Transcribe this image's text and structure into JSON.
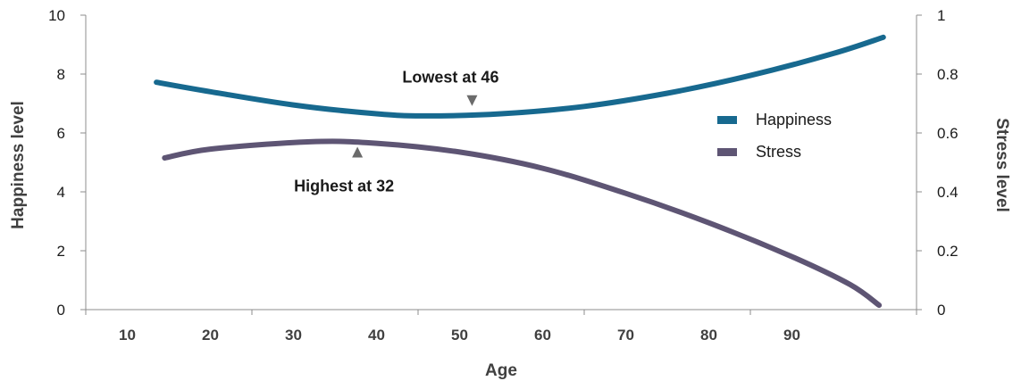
{
  "chart_data": {
    "type": "line",
    "xlabel": "Age",
    "ylabel_left": "Happiness level",
    "ylabel_right": "Stress level",
    "x_ticks": [
      "10",
      "20",
      "30",
      "40",
      "50",
      "60",
      "70",
      "80",
      "90"
    ],
    "y_left_ticks": [
      "0",
      "2",
      "4",
      "6",
      "8",
      "10"
    ],
    "y_right_ticks": [
      "0",
      "0.2",
      "0.4",
      "0.6",
      "0.8",
      "1"
    ],
    "xlim": [
      5,
      105
    ],
    "ylim_left": [
      0,
      10
    ],
    "ylim_right": [
      0,
      1
    ],
    "legend_position": "right",
    "grid": false,
    "series": [
      {
        "name": "Happiness",
        "axis": "left",
        "color": "#17698f",
        "x": [
          13.5,
          20,
          30,
          40,
          46,
          55,
          65,
          75,
          85,
          95,
          101
        ],
        "y": [
          7.72,
          7.4,
          6.95,
          6.65,
          6.58,
          6.65,
          6.9,
          7.35,
          7.95,
          8.7,
          9.25
        ]
      },
      {
        "name": "Stress",
        "axis": "right",
        "color": "#5e5574",
        "x": [
          14.5,
          20,
          32,
          40,
          50,
          60,
          70,
          80,
          90,
          97,
          100.5
        ],
        "y": [
          0.515,
          0.545,
          0.57,
          0.565,
          0.535,
          0.48,
          0.395,
          0.295,
          0.18,
          0.085,
          0.015
        ]
      }
    ],
    "annotations": [
      {
        "text": "Lowest at 46",
        "marker_direction": "down",
        "marker_x": 51.5,
        "marker_y_left": 7.1,
        "color": "#6b6b6b"
      },
      {
        "text": "Highest at 32",
        "marker_direction": "up",
        "marker_x": 37.7,
        "marker_y_left": 5.35,
        "color": "#6b6b6b"
      }
    ]
  }
}
